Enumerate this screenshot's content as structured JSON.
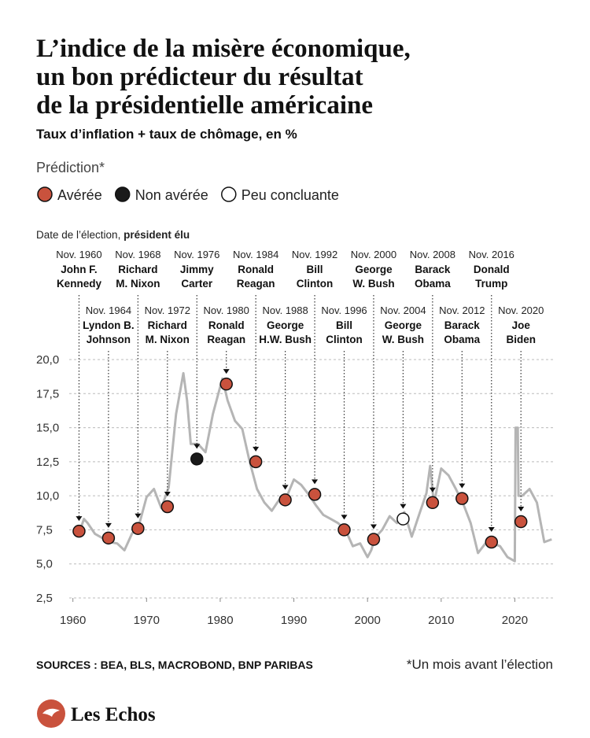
{
  "chart_data": {
    "type": "line",
    "title": [
      "L’indice de la misère économique,",
      "un bon prédicteur du résultat",
      "de la présidentielle américaine"
    ],
    "subtitle": "Taux d’inflation + taux de chômage, en %",
    "legend_title": "Prédiction*",
    "x_label": [
      "Date de l’élection, ",
      "président élu"
    ],
    "source": "SOURCES : BEA, BLS, MACROBOND, BNP PARIBAS",
    "note": "*Un mois avant l’élection",
    "logo": "Les Echos",
    "xlim": [
      1959.5,
      2025.4
    ],
    "xticks": [
      1960,
      1970,
      1980,
      1990,
      2000,
      2010,
      2020
    ],
    "ylim": [
      2.5,
      20
    ],
    "yticks": [
      {
        "value": 2.5,
        "label": "2,5"
      },
      {
        "value": 5,
        "label": "5,0"
      },
      {
        "value": 7.5,
        "label": "7,5"
      },
      {
        "value": 10,
        "label": "10,0"
      },
      {
        "value": 12.5,
        "label": "12,5"
      },
      {
        "value": 15,
        "label": "15,0"
      },
      {
        "value": 17.5,
        "label": "17,5"
      },
      {
        "value": 20,
        "label": "20,0"
      }
    ],
    "grid": true,
    "line": {
      "color": "#b5b5b5",
      "x": [
        1960.5,
        1961,
        1961.5,
        1962,
        1963,
        1964,
        1965,
        1966,
        1967,
        1968,
        1969,
        1970,
        1971,
        1972,
        1973,
        1974,
        1975,
        1975.5,
        1976,
        1977,
        1978,
        1979,
        1980.3,
        1981,
        1982,
        1983,
        1984,
        1985,
        1986,
        1987,
        1988,
        1989,
        1990,
        1991,
        1992,
        1993,
        1994,
        1995,
        1996,
        1997,
        1998,
        1999,
        2000,
        2000.5,
        2001,
        2002,
        2003,
        2004,
        2005,
        2006,
        2007,
        2008,
        2008.5,
        2009,
        2010,
        2011,
        2012,
        2013,
        2014,
        2015,
        2016,
        2017,
        2018,
        2019,
        2020,
        2020.1,
        2020.4,
        2020.5,
        2021,
        2022,
        2023,
        2024,
        2025
      ],
      "values": [
        7.0,
        7.5,
        8.3,
        8.0,
        7.2,
        6.9,
        6.6,
        6.5,
        6.0,
        7.2,
        7.9,
        9.9,
        10.5,
        9.1,
        10.6,
        16.0,
        19.0,
        17.0,
        13.8,
        13.8,
        13.2,
        16.0,
        18.6,
        17.0,
        15.5,
        14.9,
        12.5,
        10.5,
        9.5,
        8.9,
        9.7,
        9.9,
        11.2,
        10.8,
        10.1,
        9.3,
        8.6,
        8.3,
        8.0,
        7.5,
        6.3,
        6.5,
        5.5,
        6.0,
        6.9,
        7.5,
        8.5,
        8.0,
        8.8,
        7.0,
        8.6,
        10.2,
        12.2,
        9.4,
        12.0,
        11.5,
        10.5,
        9.4,
        8.0,
        5.8,
        6.5,
        6.5,
        6.3,
        5.5,
        5.2,
        15.0,
        15.0,
        10.0,
        10.0,
        10.5,
        9.5,
        6.6,
        6.8
      ]
    },
    "series": [
      {
        "name": "Avérée",
        "color": "#c9523d",
        "x": [
          1960.83,
          1964.83,
          1968.83,
          1972.83,
          1980.83,
          1984.83,
          1988.83,
          1992.83,
          1996.83,
          2000.83,
          2008.83,
          2012.83,
          2016.83,
          2020.83
        ],
        "values": [
          7.4,
          6.9,
          7.6,
          9.2,
          18.2,
          12.5,
          9.7,
          10.1,
          7.5,
          6.8,
          9.5,
          9.8,
          6.6,
          8.1
        ]
      },
      {
        "name": "Non avérée",
        "color": "#1a1a1a",
        "x": [
          1976.83
        ],
        "values": [
          12.7
        ]
      },
      {
        "name": "Peu concluante",
        "color": "#ffffff",
        "x": [
          2004.83
        ],
        "values": [
          8.3
        ]
      }
    ],
    "elections": [
      {
        "date": "Nov. 1960",
        "name": [
          "John F.",
          "Kennedy"
        ],
        "x": 1960.83
      },
      {
        "date": "Nov. 1964",
        "name": [
          "Lyndon B.",
          "Johnson"
        ],
        "x": 1964.83
      },
      {
        "date": "Nov. 1968",
        "name": [
          "Richard",
          "M. Nixon"
        ],
        "x": 1968.83
      },
      {
        "date": "Nov. 1972",
        "name": [
          "Richard",
          "M. Nixon"
        ],
        "x": 1972.83
      },
      {
        "date": "Nov. 1976",
        "name": [
          "Jimmy",
          "Carter"
        ],
        "x": 1976.83
      },
      {
        "date": "Nov. 1980",
        "name": [
          "Ronald",
          "Reagan"
        ],
        "x": 1980.83
      },
      {
        "date": "Nov. 1984",
        "name": [
          "Ronald",
          "Reagan"
        ],
        "x": 1984.83
      },
      {
        "date": "Nov. 1988",
        "name": [
          "George",
          "H.W. Bush"
        ],
        "x": 1988.83
      },
      {
        "date": "Nov. 1992",
        "name": [
          "Bill",
          "Clinton"
        ],
        "x": 1992.83
      },
      {
        "date": "Nov. 1996",
        "name": [
          "Bill",
          "Clinton"
        ],
        "x": 1996.83
      },
      {
        "date": "Nov. 2000",
        "name": [
          "George",
          "W. Bush"
        ],
        "x": 2000.83
      },
      {
        "date": "Nov. 2004",
        "name": [
          "George",
          "W. Bush"
        ],
        "x": 2004.83
      },
      {
        "date": "Nov. 2008",
        "name": [
          "Barack",
          "Obama"
        ],
        "x": 2008.83
      },
      {
        "date": "Nov. 2012",
        "name": [
          "Barack",
          "Obama"
        ],
        "x": 2012.83
      },
      {
        "date": "Nov. 2016",
        "name": [
          "Donald",
          "Trump"
        ],
        "x": 2016.83
      },
      {
        "date": "Nov. 2020",
        "name": [
          "Joe",
          "Biden"
        ],
        "x": 2020.83
      }
    ]
  }
}
